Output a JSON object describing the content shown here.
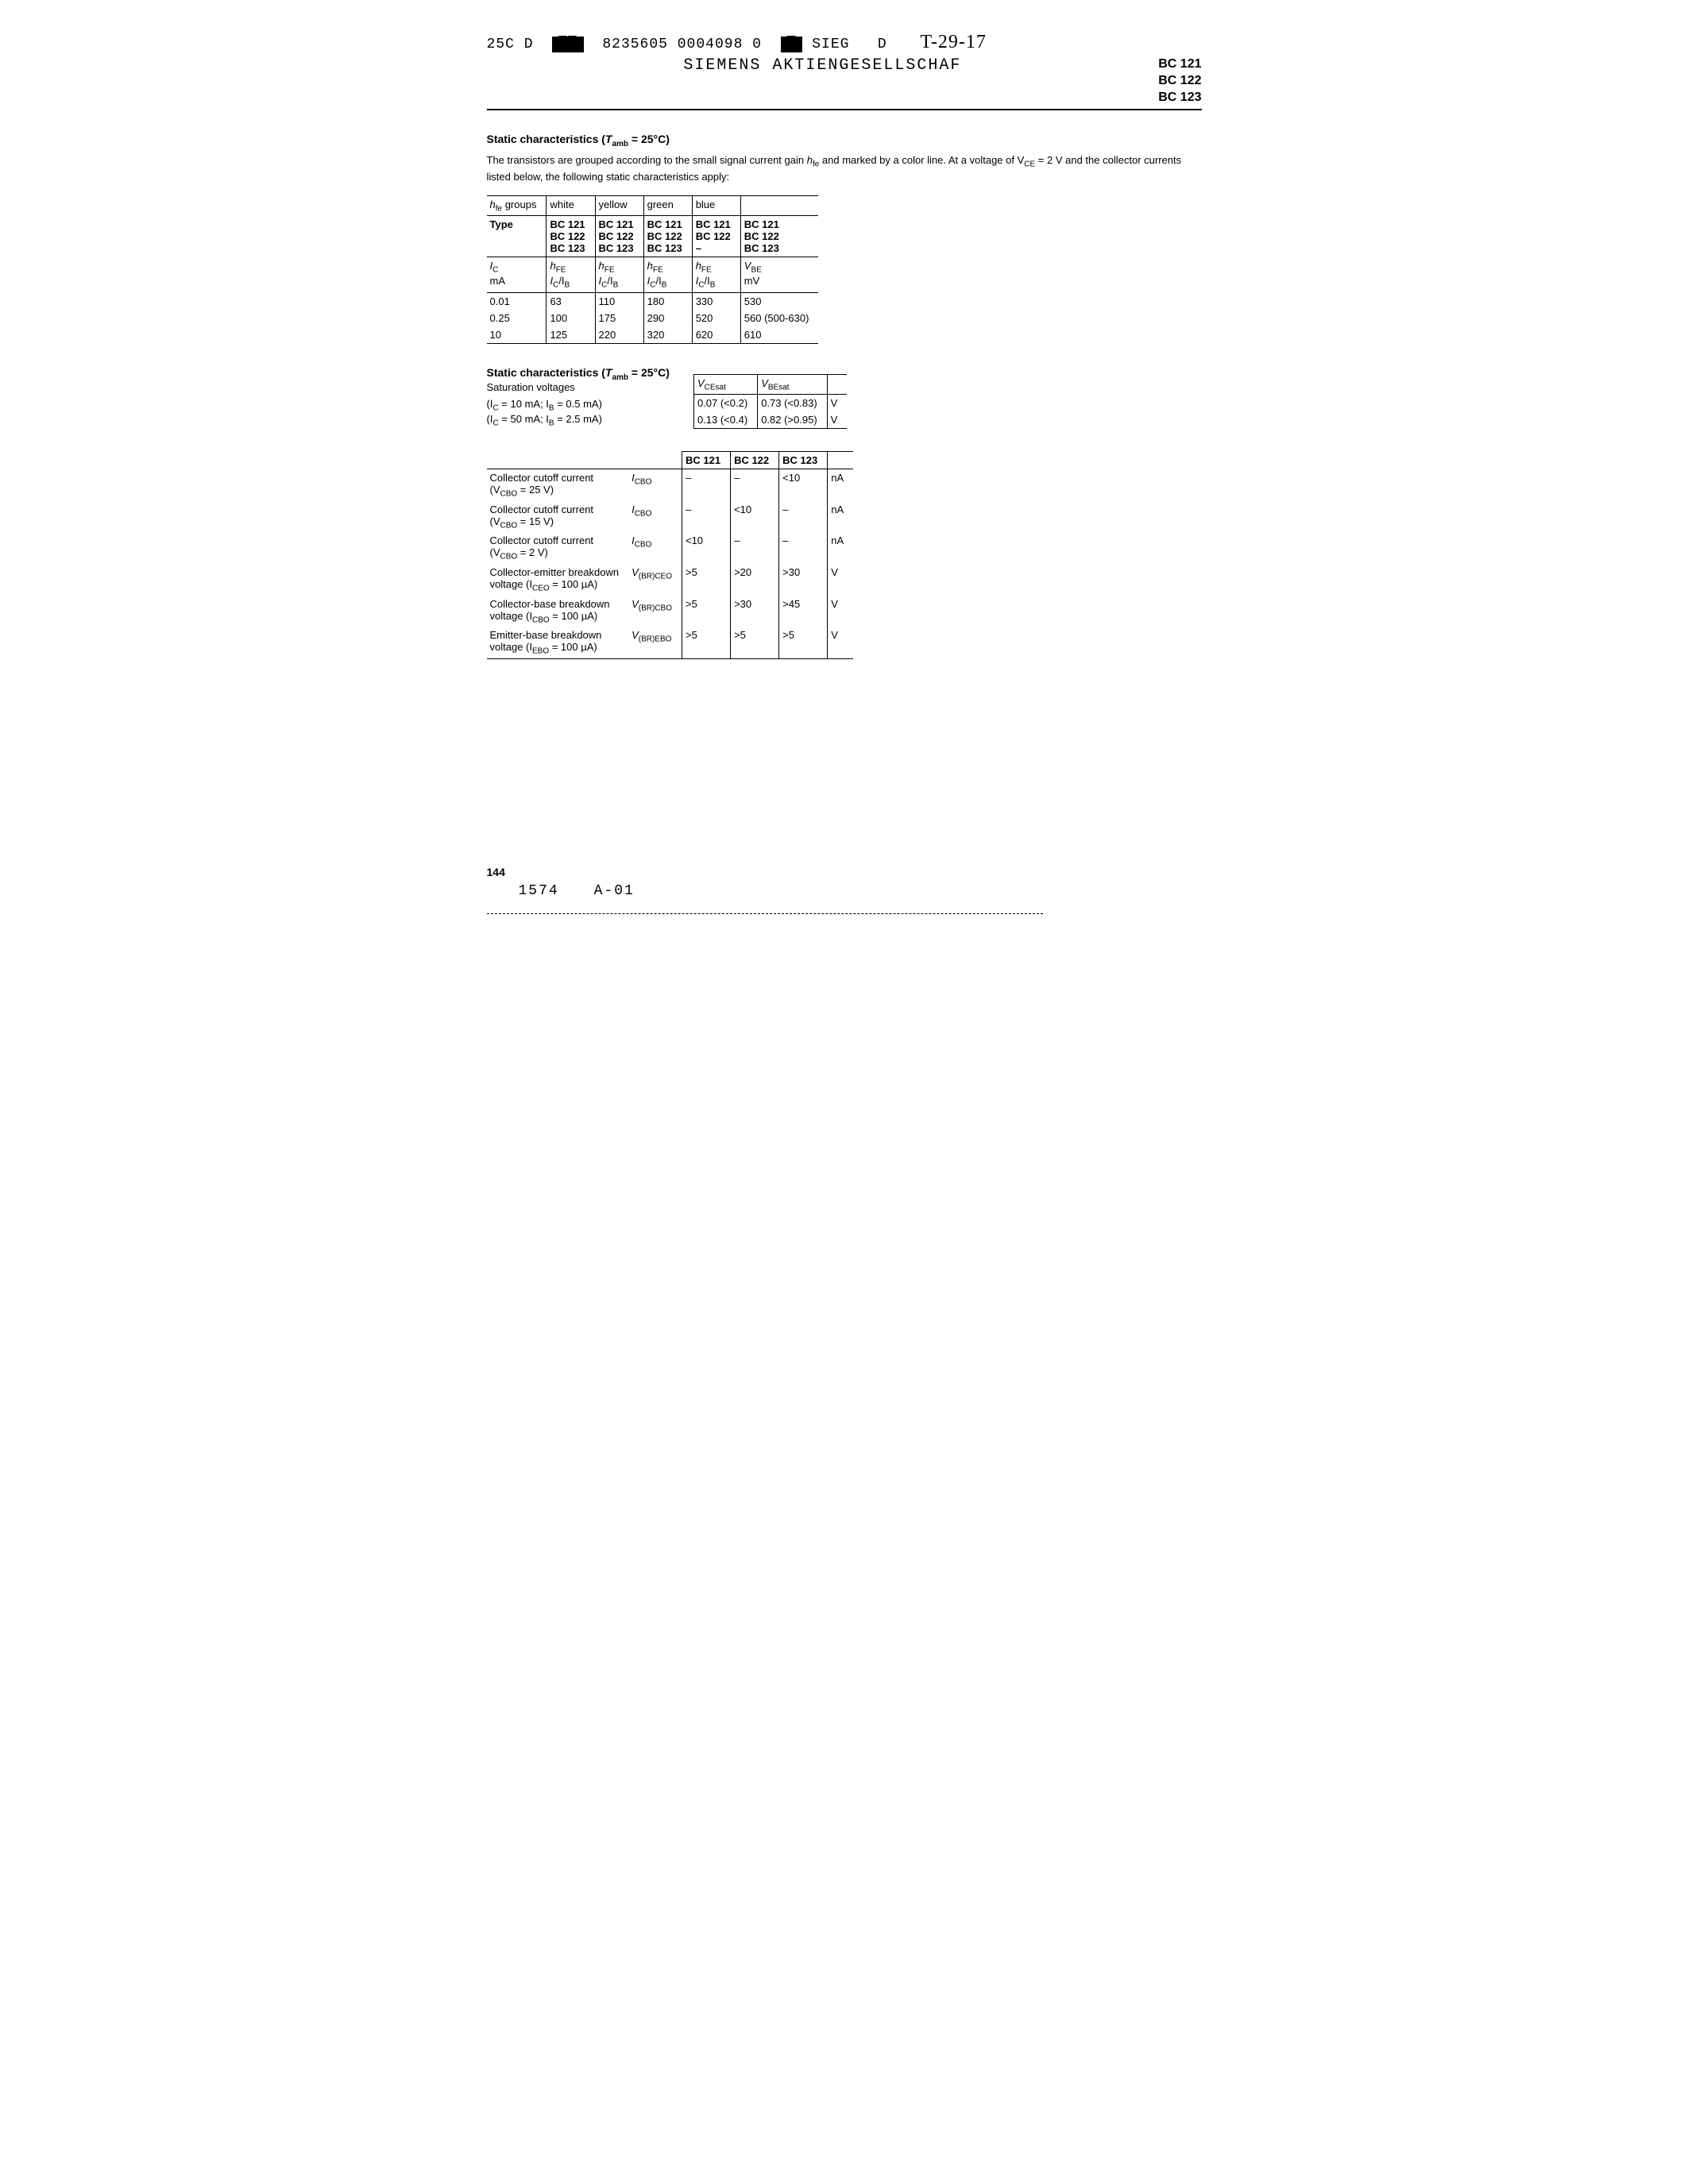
{
  "header": {
    "code_left": "25C D",
    "code_mid": "8235605 0004098 0",
    "code_right": "SIEG",
    "handwritten_prefix": "D",
    "handwritten": "T-29-17",
    "company": "SIEMENS AKTIENGESELLSCHAF",
    "parts": [
      "BC 121",
      "BC 122",
      "BC 123"
    ]
  },
  "section1": {
    "title_pre": "Static characteristics (",
    "title_sym": "T",
    "title_sub": "amb",
    "title_post": " = 25°C)",
    "intro_a": "The transistors are grouped according to the small signal current gain ",
    "intro_sym": "h",
    "intro_sub": "fe",
    "intro_b": " and marked by a color line. At a voltage of V",
    "intro_sub2": "CE",
    "intro_c": " = 2 V and the collector currents listed below, the following static characteristics apply:"
  },
  "table1": {
    "r1c1_pre": "h",
    "r1c1_sub": "fe",
    "r1c1_post": " groups",
    "r1": [
      "white",
      "yellow",
      "green",
      "blue",
      ""
    ],
    "r2_label": "Type",
    "types": {
      "c1": [
        "BC 121",
        "BC 122",
        "BC 123"
      ],
      "c2": [
        "BC 121",
        "BC 122",
        "BC 123"
      ],
      "c3": [
        "BC 121",
        "BC 122",
        "BC 123"
      ],
      "c4": [
        "BC 121",
        "BC 122",
        "–"
      ],
      "c5": [
        "BC 121",
        "BC 122",
        "BC 123"
      ]
    },
    "unit_row": {
      "c0a": "I",
      "c0a_sub": "C",
      "c0b": "mA",
      "hfe_a": "h",
      "hfe_sub": "FE",
      "ratio_a": "I",
      "ratio_sub1": "C",
      "ratio_mid": "/I",
      "ratio_sub2": "B",
      "vbe_a": "V",
      "vbe_sub": "BE",
      "vbe_unit": "mV"
    },
    "data": [
      {
        "ic": "0.01",
        "c1": "63",
        "c2": "110",
        "c3": "180",
        "c4": "330",
        "c5": "530"
      },
      {
        "ic": "0.25",
        "c1": "100",
        "c2": "175",
        "c3": "290",
        "c4": "520",
        "c5": "560 (500-630)"
      },
      {
        "ic": "10",
        "c1": "125",
        "c2": "220",
        "c3": "320",
        "c4": "620",
        "c5": "610"
      }
    ]
  },
  "section2": {
    "title_pre": "Static characteristics (",
    "title_sym": "T",
    "title_sub": "amb",
    "title_post": " = 25°C)",
    "subtitle": "Saturation voltages",
    "cond1_a": "(I",
    "cond1_sub1": "C",
    "cond1_b": " = 10 mA; I",
    "cond1_sub2": "B",
    "cond1_c": " = 0.5 mA)",
    "cond2_a": "(I",
    "cond2_sub1": "C",
    "cond2_b": " = 50 mA; I",
    "cond2_sub2": "B",
    "cond2_c": " = 2.5 mA)"
  },
  "table2": {
    "h1_a": "V",
    "h1_sub": "CEsat",
    "h2_a": "V",
    "h2_sub": "BEsat",
    "rows": [
      {
        "vce": "0.07 (<0.2)",
        "vbe": "0.73 (<0.83)",
        "u": "V"
      },
      {
        "vce": "0.13 (<0.4)",
        "vbe": "0.82 (>0.95)",
        "u": "V"
      }
    ]
  },
  "table3": {
    "heads": [
      "BC 121",
      "BC 122",
      "BC 123"
    ],
    "rows": [
      {
        "desc_a": "Collector cutoff current",
        "desc_b": "(V",
        "desc_sub": "CBO",
        "desc_c": " = 25 V)",
        "sym_a": "I",
        "sym_sub": "CBO",
        "v": [
          "–",
          "–",
          "<10"
        ],
        "u": "nA"
      },
      {
        "desc_a": "Collector cutoff current",
        "desc_b": "(V",
        "desc_sub": "CBO",
        "desc_c": " = 15 V)",
        "sym_a": "I",
        "sym_sub": "CBO",
        "v": [
          "–",
          "<10",
          "–"
        ],
        "u": "nA"
      },
      {
        "desc_a": "Collector cutoff current",
        "desc_b": "(V",
        "desc_sub": "CBO",
        "desc_c": " = 2 V)",
        "sym_a": "I",
        "sym_sub": "CBO",
        "v": [
          "<10",
          "–",
          "–"
        ],
        "u": "nA"
      },
      {
        "desc_a": "Collector-emitter breakdown",
        "desc_b": "voltage (I",
        "desc_sub": "CEO",
        "desc_c": " = 100 µA)",
        "sym_a": "V",
        "sym_sub": "(BR)CEO",
        "v": [
          ">5",
          ">20",
          ">30"
        ],
        "u": "V"
      },
      {
        "desc_a": "Collector-base breakdown",
        "desc_b": "voltage (I",
        "desc_sub": "CBO",
        "desc_c": " = 100 µA)",
        "sym_a": "V",
        "sym_sub": "(BR)CBO",
        "v": [
          ">5",
          ">30",
          ">45"
        ],
        "u": "V"
      },
      {
        "desc_a": "Emitter-base breakdown",
        "desc_b": "voltage (I",
        "desc_sub": "EBO",
        "desc_c": " = 100 µA)",
        "sym_a": "V",
        "sym_sub": "(BR)EBO",
        "v": [
          ">5",
          ">5",
          ">5"
        ],
        "u": "V"
      }
    ]
  },
  "footer": {
    "page_num": "144",
    "code_a": "1574",
    "code_b": "A-01"
  }
}
